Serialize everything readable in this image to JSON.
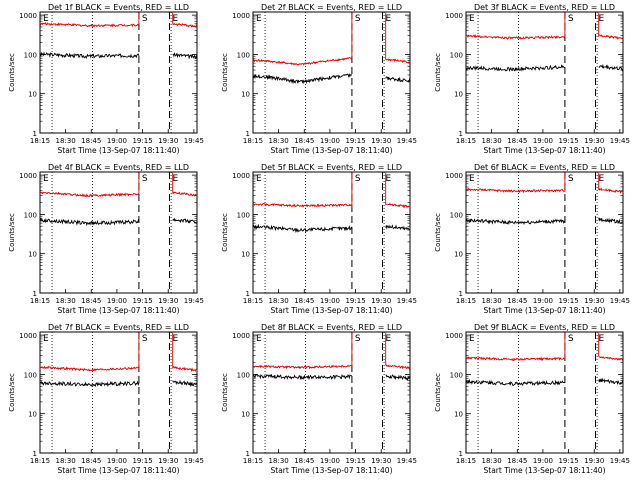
{
  "chart_data": [
    {
      "type": "line",
      "title": "Det 1f BLACK = Events, RED = LLD",
      "xlabel": "Start Time (13-Sep-07 18:11:40)",
      "ylabel": "Counts/sec",
      "x_ticks": [
        "18:15",
        "18:30",
        "18:45",
        "19:00",
        "19:15",
        "19:30",
        "19:45"
      ],
      "y_ticks": [
        "1",
        "10",
        "100",
        "1000"
      ],
      "ylim": [
        1,
        1200
      ],
      "yscale": "log",
      "markers": [
        "E",
        "S",
        "E"
      ],
      "series": [
        {
          "color": "#000000",
          "levels": [
            100,
            90,
            95,
            100
          ]
        },
        {
          "color": "#e00000",
          "levels": [
            600,
            540,
            560,
            600
          ]
        }
      ]
    },
    {
      "type": "line",
      "title": "Det 2f BLACK = Events, RED = LLD",
      "xlabel": "Start Time (13-Sep-07 18:11:40)",
      "ylabel": "Counts/sec",
      "x_ticks": [
        "18:15",
        "18:30",
        "18:45",
        "19:00",
        "19:15",
        "19:30",
        "19:45"
      ],
      "y_ticks": [
        "1",
        "10",
        "100",
        "1000"
      ],
      "ylim": [
        1,
        1200
      ],
      "yscale": "log",
      "markers": [
        "E",
        "S",
        "E"
      ],
      "series": [
        {
          "color": "#000000",
          "levels": [
            28,
            20,
            30,
            25
          ]
        },
        {
          "color": "#e00000",
          "levels": [
            70,
            55,
            80,
            75
          ]
        }
      ]
    },
    {
      "type": "line",
      "title": "Det 3f BLACK = Events, RED = LLD",
      "xlabel": "Start Time (13-Sep-07 18:11:40)",
      "ylabel": "Counts/sec",
      "x_ticks": [
        "18:15",
        "18:30",
        "18:45",
        "19:00",
        "19:15",
        "19:30",
        "19:45"
      ],
      "y_ticks": [
        "1",
        "10",
        "100",
        "1000"
      ],
      "ylim": [
        1,
        1200
      ],
      "yscale": "log",
      "markers": [
        "E",
        "S",
        "E"
      ],
      "series": [
        {
          "color": "#000000",
          "levels": [
            45,
            42,
            48,
            50
          ]
        },
        {
          "color": "#e00000",
          "levels": [
            290,
            260,
            280,
            300
          ]
        }
      ]
    },
    {
      "type": "line",
      "title": "Det 4f BLACK = Events, RED = LLD",
      "xlabel": "Start Time (13-Sep-07 18:11:40)",
      "ylabel": "Counts/sec",
      "x_ticks": [
        "18:15",
        "18:30",
        "18:45",
        "19:00",
        "19:15",
        "19:30",
        "19:45"
      ],
      "y_ticks": [
        "1",
        "10",
        "100",
        "1000"
      ],
      "ylim": [
        1,
        1200
      ],
      "yscale": "log",
      "markers": [
        "E",
        "S",
        "E"
      ],
      "series": [
        {
          "color": "#000000",
          "levels": [
            70,
            60,
            65,
            75
          ]
        },
        {
          "color": "#e00000",
          "levels": [
            350,
            300,
            330,
            360
          ]
        }
      ]
    },
    {
      "type": "line",
      "title": "Det 5f BLACK = Events, RED = LLD",
      "xlabel": "Start Time (13-Sep-07 18:11:40)",
      "ylabel": "Counts/sec",
      "x_ticks": [
        "18:15",
        "18:30",
        "18:45",
        "19:00",
        "19:15",
        "19:30",
        "19:45"
      ],
      "y_ticks": [
        "1",
        "10",
        "100",
        "1000"
      ],
      "ylim": [
        1,
        1200
      ],
      "yscale": "log",
      "markers": [
        "E",
        "S",
        "E"
      ],
      "series": [
        {
          "color": "#000000",
          "levels": [
            48,
            40,
            45,
            50
          ]
        },
        {
          "color": "#e00000",
          "levels": [
            180,
            165,
            175,
            185
          ]
        }
      ]
    },
    {
      "type": "line",
      "title": "Det 6f BLACK = Events, RED = LLD",
      "xlabel": "Start Time (13-Sep-07 18:11:40)",
      "ylabel": "Counts/sec",
      "x_ticks": [
        "18:15",
        "18:30",
        "18:45",
        "19:00",
        "19:15",
        "19:30",
        "19:45"
      ],
      "y_ticks": [
        "1",
        "10",
        "100",
        "1000"
      ],
      "ylim": [
        1,
        1200
      ],
      "yscale": "log",
      "markers": [
        "E",
        "S",
        "E"
      ],
      "series": [
        {
          "color": "#000000",
          "levels": [
            70,
            62,
            68,
            75
          ]
        },
        {
          "color": "#e00000",
          "levels": [
            430,
            390,
            410,
            440
          ]
        }
      ]
    },
    {
      "type": "line",
      "title": "Det 7f BLACK = Events, RED = LLD",
      "xlabel": "Start Time (13-Sep-07 18:11:40)",
      "ylabel": "Counts/sec",
      "x_ticks": [
        "18:15",
        "18:30",
        "18:45",
        "19:00",
        "19:15",
        "19:30",
        "19:45"
      ],
      "y_ticks": [
        "1",
        "10",
        "100",
        "1000"
      ],
      "ylim": [
        1,
        1200
      ],
      "yscale": "log",
      "markers": [
        "E",
        "S",
        "E"
      ],
      "series": [
        {
          "color": "#000000",
          "levels": [
            60,
            55,
            60,
            65
          ]
        },
        {
          "color": "#e00000",
          "levels": [
            150,
            130,
            145,
            150
          ]
        }
      ]
    },
    {
      "type": "line",
      "title": "Det 8f BLACK = Events, RED = LLD",
      "xlabel": "Start Time (13-Sep-07 18:11:40)",
      "ylabel": "Counts/sec",
      "x_ticks": [
        "18:15",
        "18:30",
        "18:45",
        "19:00",
        "19:15",
        "19:30",
        "19:45"
      ],
      "y_ticks": [
        "1",
        "10",
        "100",
        "1000"
      ],
      "ylim": [
        1,
        1200
      ],
      "yscale": "log",
      "markers": [
        "E",
        "S",
        "E"
      ],
      "series": [
        {
          "color": "#000000",
          "levels": [
            90,
            85,
            88,
            92
          ]
        },
        {
          "color": "#e00000",
          "levels": [
            160,
            150,
            165,
            170
          ]
        }
      ]
    },
    {
      "type": "line",
      "title": "Det 9f BLACK = Events, RED = LLD",
      "xlabel": "Start Time (13-Sep-07 18:11:40)",
      "ylabel": "Counts/sec",
      "x_ticks": [
        "18:15",
        "18:30",
        "18:45",
        "19:00",
        "19:15",
        "19:30",
        "19:45"
      ],
      "y_ticks": [
        "1",
        "10",
        "100",
        "1000"
      ],
      "ylim": [
        1,
        1200
      ],
      "yscale": "log",
      "markers": [
        "E",
        "S",
        "E"
      ],
      "series": [
        {
          "color": "#000000",
          "levels": [
            65,
            58,
            62,
            70
          ]
        },
        {
          "color": "#e00000",
          "levels": [
            260,
            240,
            255,
            280
          ]
        }
      ]
    }
  ]
}
